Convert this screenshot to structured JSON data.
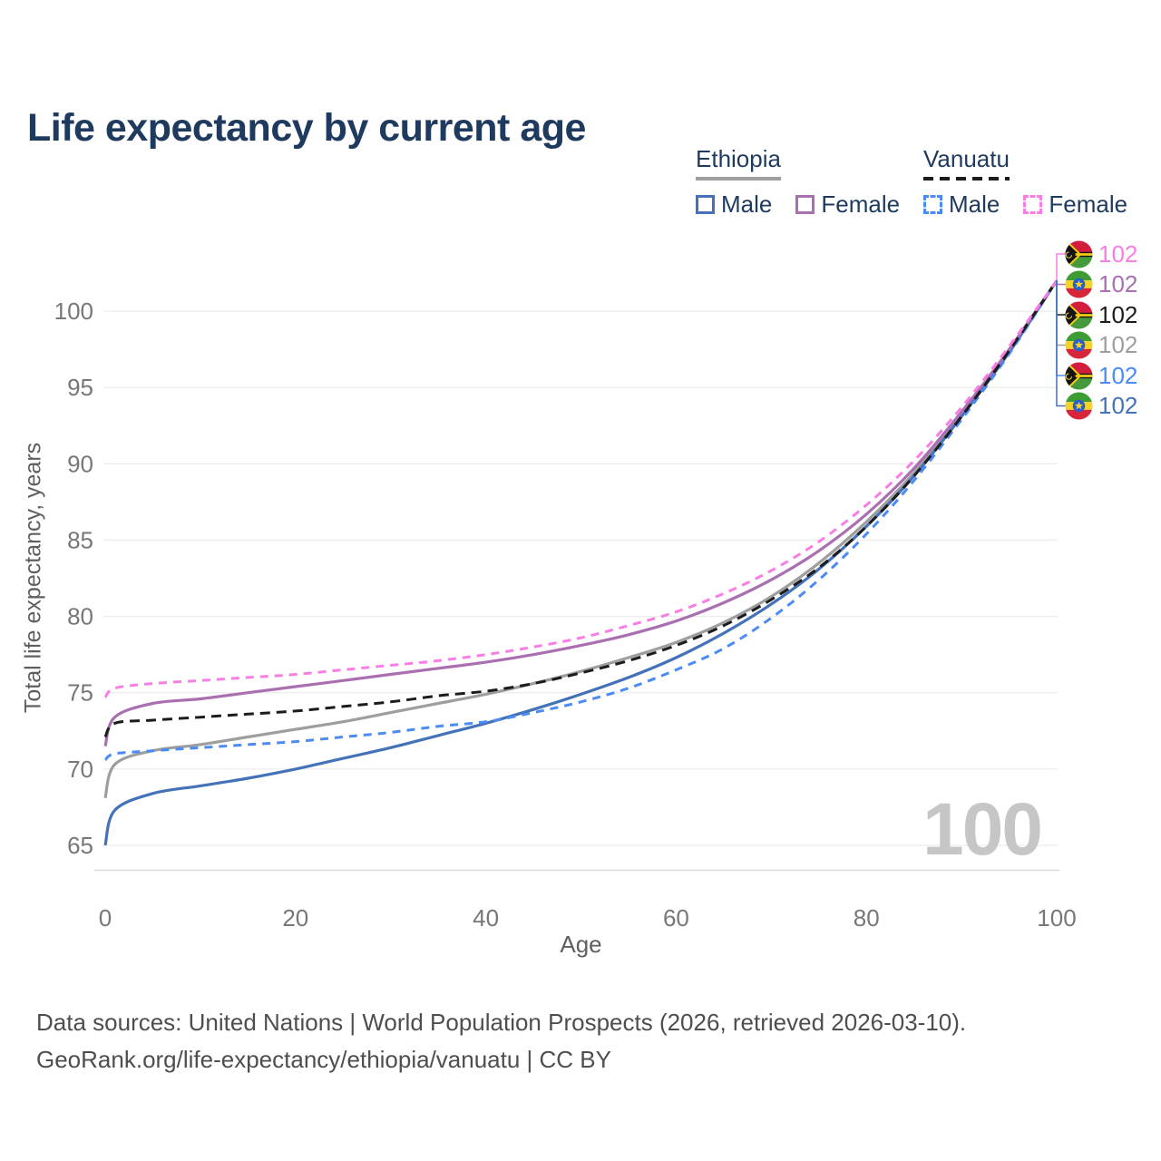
{
  "title": "Life expectancy by current age",
  "watermark": "100",
  "colors": {
    "ethiopia_male": "#4472b8",
    "ethiopia_female": "#a96fb0",
    "ethiopia_total": "#9e9e9e",
    "vanuatu_male": "#4b8bf5",
    "vanuatu_female": "#fa7de4",
    "vanuatu_total": "#1c1c1c",
    "grid": "#ececec",
    "axis_line": "#d9d9d9",
    "tick_text": "#777777",
    "axis_title_text": "#5f5f5f",
    "watermark_text": "#c6c6c6",
    "title_text": "#1f3a5f",
    "footer_text": "#4e4e4e"
  },
  "legend": {
    "groups": [
      {
        "label": "Ethiopia",
        "underline_style": "solid",
        "items": [
          {
            "label": "Male"
          },
          {
            "label": "Female"
          }
        ]
      },
      {
        "label": "Vanuatu",
        "underline_style": "dashed",
        "items": [
          {
            "label": "Male"
          },
          {
            "label": "Female"
          }
        ]
      }
    ]
  },
  "chart_data": {
    "type": "line",
    "title": "Life expectancy by current age",
    "xlabel": "Age",
    "ylabel": "Total life expectancy, years",
    "x_ticks": [
      0,
      20,
      40,
      60,
      80,
      100
    ],
    "y_ticks": [
      65,
      70,
      75,
      80,
      85,
      90,
      95,
      100
    ],
    "xlim": [
      0,
      100
    ],
    "ylim": [
      63.3,
      103.5
    ],
    "grid": "horizontal",
    "legend_position": "top-right",
    "x": [
      0,
      1,
      5,
      10,
      15,
      20,
      25,
      30,
      35,
      40,
      45,
      50,
      55,
      60,
      65,
      70,
      75,
      80,
      85,
      90,
      95,
      100
    ],
    "series": [
      {
        "id": "ethiopia_total",
        "name": "Ethiopia (both sexes)",
        "country": "Ethiopia",
        "sex": "both",
        "color": "#9e9e9e",
        "dash": false,
        "values": [
          68.1,
          70.3,
          71.2,
          71.6,
          72.1,
          72.6,
          73.1,
          73.7,
          74.3,
          74.9,
          75.6,
          76.4,
          77.3,
          78.3,
          79.6,
          81.3,
          83.5,
          86.2,
          89.4,
          93.2,
          97.4,
          102
        ]
      },
      {
        "id": "ethiopia_male",
        "name": "Ethiopia Male",
        "country": "Ethiopia",
        "sex": "male",
        "color": "#4472b8",
        "dash": false,
        "values": [
          65.0,
          67.3,
          68.4,
          68.9,
          69.4,
          70.0,
          70.7,
          71.4,
          72.2,
          73.0,
          73.9,
          74.9,
          76.0,
          77.3,
          78.9,
          80.8,
          83.1,
          85.9,
          89.2,
          93.1,
          97.3,
          102
        ]
      },
      {
        "id": "ethiopia_female",
        "name": "Ethiopia Female",
        "country": "Ethiopia",
        "sex": "female",
        "color": "#a96fb0",
        "dash": false,
        "values": [
          71.5,
          73.4,
          74.3,
          74.6,
          75.0,
          75.4,
          75.8,
          76.2,
          76.6,
          77.0,
          77.5,
          78.1,
          78.8,
          79.7,
          80.9,
          82.4,
          84.3,
          86.7,
          89.7,
          93.4,
          97.5,
          102
        ]
      },
      {
        "id": "vanuatu_male",
        "name": "Vanuatu Male",
        "country": "Vanuatu",
        "sex": "male",
        "color": "#4b8bf5",
        "dash": true,
        "values": [
          70.6,
          71.0,
          71.2,
          71.4,
          71.6,
          71.8,
          72.1,
          72.4,
          72.8,
          73.1,
          73.7,
          74.4,
          75.3,
          76.5,
          77.9,
          79.9,
          82.4,
          85.4,
          88.9,
          92.9,
          97.2,
          102
        ]
      },
      {
        "id": "vanuatu_total",
        "name": "Vanuatu (both sexes)",
        "country": "Vanuatu",
        "sex": "both",
        "color": "#1c1c1c",
        "dash": true,
        "values": [
          72.1,
          73.0,
          73.2,
          73.4,
          73.6,
          73.8,
          74.1,
          74.4,
          74.8,
          75.1,
          75.6,
          76.3,
          77.1,
          78.1,
          79.4,
          81.1,
          83.2,
          85.9,
          89.2,
          93.1,
          97.4,
          102
        ]
      },
      {
        "id": "vanuatu_female",
        "name": "Vanuatu Female",
        "country": "Vanuatu",
        "sex": "female",
        "color": "#fa7de4",
        "dash": true,
        "values": [
          74.7,
          75.3,
          75.6,
          75.8,
          76.0,
          76.2,
          76.5,
          76.8,
          77.1,
          77.5,
          78.0,
          78.6,
          79.4,
          80.3,
          81.5,
          83.0,
          84.9,
          87.3,
          90.2,
          93.7,
          97.7,
          102
        ]
      }
    ],
    "end_labels": [
      {
        "flag": "vanuatu",
        "series": "vanuatu_female",
        "value": "102",
        "color": "#fa7de4"
      },
      {
        "flag": "ethiopia",
        "series": "ethiopia_female",
        "value": "102",
        "color": "#a96fb0"
      },
      {
        "flag": "vanuatu",
        "series": "vanuatu_total",
        "value": "102",
        "color": "#1c1c1c"
      },
      {
        "flag": "ethiopia",
        "series": "ethiopia_total",
        "value": "102",
        "color": "#9e9e9e"
      },
      {
        "flag": "vanuatu",
        "series": "vanuatu_male",
        "value": "102",
        "color": "#4b8bf5"
      },
      {
        "flag": "ethiopia",
        "series": "ethiopia_male",
        "value": "102",
        "color": "#4472b8"
      }
    ]
  },
  "footer": {
    "line1": "Data sources: United Nations | World Population Prospects (2026, retrieved 2026-03-10).",
    "line2": "GeoRank.org/life-expectancy/ethiopia/vanuatu | CC BY"
  }
}
